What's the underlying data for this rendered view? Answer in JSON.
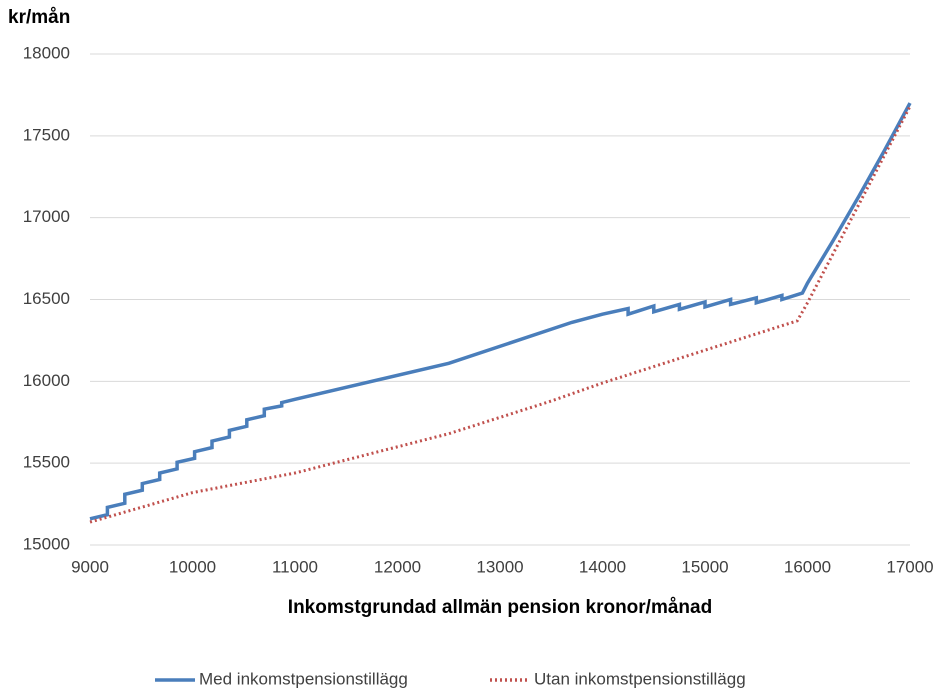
{
  "chart_data": {
    "type": "line",
    "y_axis_label": "kr/mån",
    "x_axis_label": "Inkomstgrundad allmän pension kronor/månad",
    "xlim": [
      9000,
      17000
    ],
    "xticks": [
      9000,
      10000,
      11000,
      12000,
      13000,
      14000,
      15000,
      16000,
      17000
    ],
    "ylim": [
      15000,
      18000
    ],
    "yticks": [
      15000,
      15500,
      16000,
      16500,
      17000,
      17500,
      18000
    ],
    "grid": true,
    "legend": "bottom",
    "series": [
      {
        "name": "Med inkomstpensionstillägg",
        "color": "#4a7ebb",
        "style": "solid",
        "x": [
          9000,
          9170,
          9170,
          9340,
          9340,
          9510,
          9510,
          9680,
          9680,
          9850,
          9850,
          10020,
          10020,
          10190,
          10190,
          10360,
          10360,
          10530,
          10530,
          10700,
          10700,
          10870,
          10870,
          11000,
          12500,
          13700,
          14000,
          14250,
          14250,
          14500,
          14500,
          14750,
          14750,
          15000,
          15000,
          15250,
          15250,
          15500,
          15500,
          15750,
          15750,
          15950,
          16000,
          16250,
          16500,
          16750,
          17000
        ],
        "values": [
          15160,
          15185,
          15230,
          15255,
          15310,
          15335,
          15375,
          15400,
          15440,
          15465,
          15505,
          15530,
          15570,
          15595,
          15635,
          15660,
          15700,
          15725,
          15765,
          15790,
          15830,
          15850,
          15870,
          15890,
          16110,
          16360,
          16410,
          16445,
          16410,
          16460,
          16425,
          16470,
          16440,
          16485,
          16455,
          16500,
          16470,
          16510,
          16480,
          16525,
          16500,
          16540,
          16600,
          16860,
          17130,
          17410,
          17700
        ]
      },
      {
        "name": "Utan inkomstpensionstillägg",
        "color": "#c0504d",
        "style": "dotted",
        "x": [
          9000,
          10000,
          11000,
          12500,
          13500,
          14000,
          15000,
          15900,
          16000,
          17000
        ],
        "values": [
          15140,
          15320,
          15440,
          15680,
          15880,
          15990,
          16190,
          16370,
          16480,
          17680
        ]
      }
    ]
  }
}
